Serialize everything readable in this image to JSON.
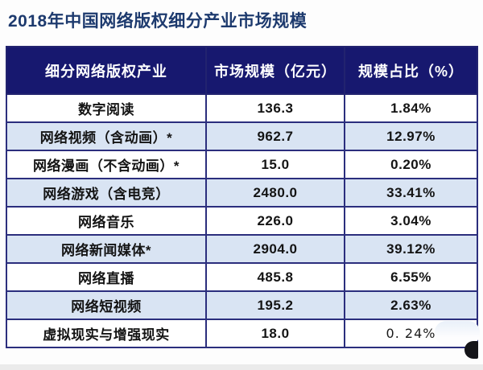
{
  "chart_data": {
    "type": "table",
    "title": "2018年中国网络版权细分产业市场规模",
    "columns": [
      "细分网络版权产业",
      "市场规模（亿元）",
      "规模占比（%）"
    ],
    "rows": [
      [
        "数字阅读",
        "136.3",
        "1.84%"
      ],
      [
        "网络视频（含动画）*",
        "962.7",
        "12.97%"
      ],
      [
        "网络漫画（不含动画）*",
        "15.0",
        "0.20%"
      ],
      [
        "网络游戏（含电竞）",
        "2480.0",
        "33.41%"
      ],
      [
        "网络音乐",
        "226.0",
        "3.04%"
      ],
      [
        "网络新闻媒体*",
        "2904.0",
        "39.12%"
      ],
      [
        "网络直播",
        "485.8",
        "6.55%"
      ],
      [
        "网络短视频",
        "195.2",
        "2.63%"
      ],
      [
        "虚拟现实与增强现实",
        "18.0",
        "0. 24%"
      ]
    ]
  },
  "colors": {
    "title_text": "#1d3a6e",
    "header_bg": "#17186f",
    "header_text": "#ffffff",
    "row_bg": "#ffffff",
    "row_alt_bg": "#d9e4f3",
    "border": "#2b2e7d",
    "body_text": "#141414"
  }
}
